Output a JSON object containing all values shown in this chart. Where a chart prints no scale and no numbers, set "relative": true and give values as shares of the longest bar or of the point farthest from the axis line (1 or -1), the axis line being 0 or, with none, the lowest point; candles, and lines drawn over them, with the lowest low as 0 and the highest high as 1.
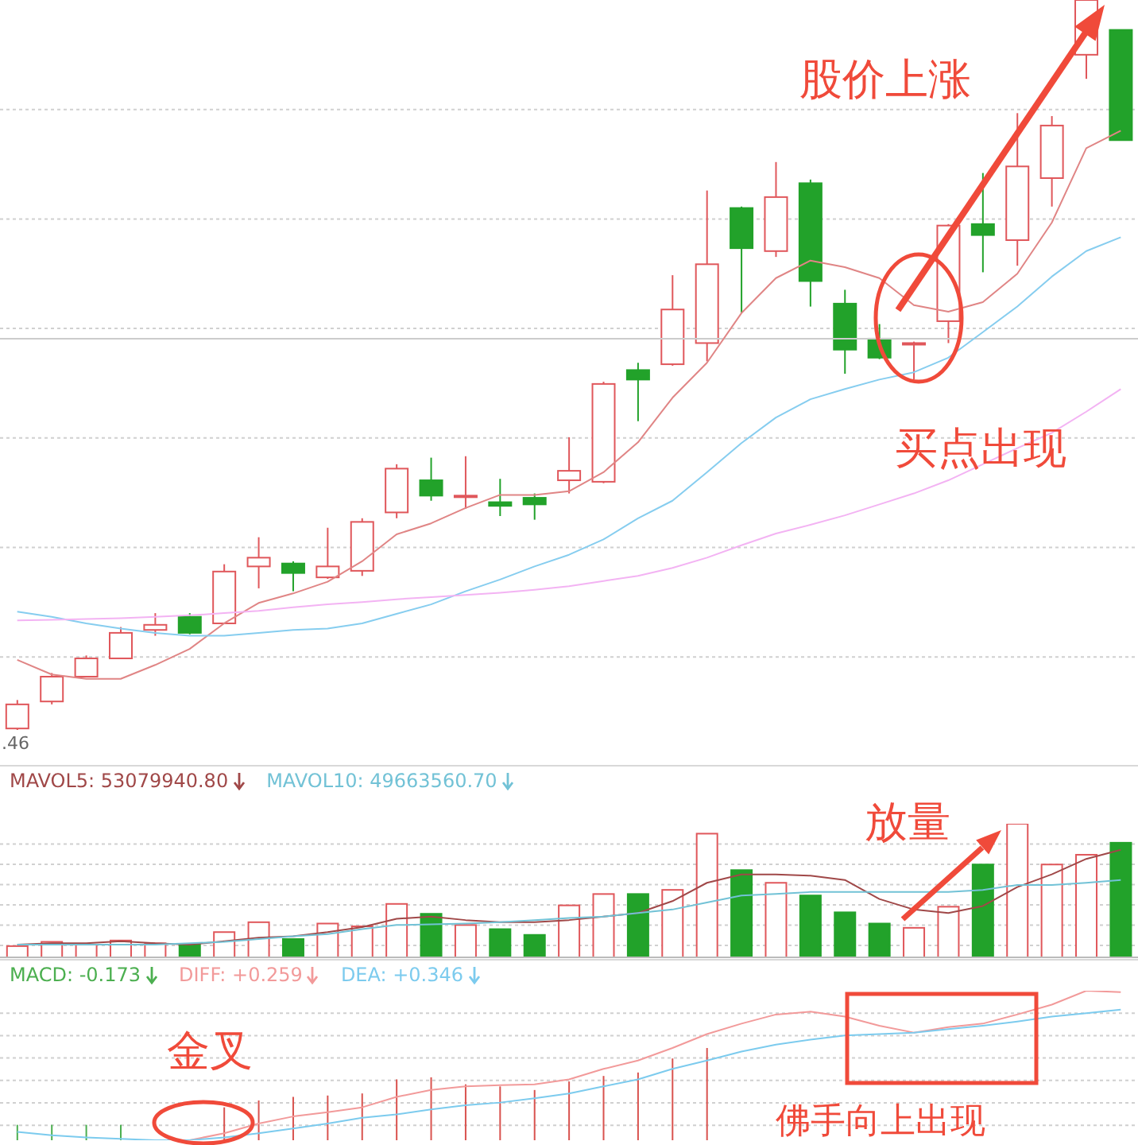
{
  "chart_data": [
    {
      "type": "candlestick",
      "relative": true,
      "grid": "y",
      "tick_labels": false,
      "categories": [
        null,
        null,
        null,
        null,
        null,
        null,
        null,
        null,
        null,
        null,
        null,
        null,
        null,
        null,
        null,
        null,
        null,
        null,
        null,
        null,
        null,
        null,
        null,
        null,
        null,
        null,
        null,
        null,
        null,
        null,
        null,
        null,
        null
      ],
      "ohlc": [
        [
          0.002,
          0.041,
          0,
          0.035
        ],
        [
          0.039,
          0.078,
          0.035,
          0.073
        ],
        [
          0.073,
          0.102,
          0.072,
          0.098
        ],
        [
          0.098,
          0.141,
          0.098,
          0.133
        ],
        [
          0.137,
          0.16,
          0.129,
          0.144
        ],
        [
          0.155,
          0.16,
          0.131,
          0.133
        ],
        [
          0.146,
          0.227,
          0.146,
          0.217
        ],
        [
          0.224,
          0.264,
          0.194,
          0.236
        ],
        [
          0.228,
          0.231,
          0.19,
          0.215
        ],
        [
          0.209,
          0.277,
          0.207,
          0.224
        ],
        [
          0.218,
          0.29,
          0.211,
          0.285
        ],
        [
          0.298,
          0.364,
          0.29,
          0.358
        ],
        [
          0.342,
          0.373,
          0.314,
          0.321
        ],
        [
          0.321,
          0.375,
          0.303,
          0.321
        ],
        [
          0.312,
          0.344,
          0.293,
          0.307
        ],
        [
          0.318,
          0.324,
          0.288,
          0.309
        ],
        [
          0.342,
          0.401,
          0.324,
          0.355
        ],
        [
          0.34,
          0.477,
          0.338,
          0.474
        ],
        [
          0.493,
          0.503,
          0.423,
          0.48
        ],
        [
          0.501,
          0.623,
          0.499,
          0.576
        ],
        [
          0.53,
          0.739,
          0.505,
          0.638
        ],
        [
          0.715,
          0.717,
          0.571,
          0.66
        ],
        [
          0.656,
          0.778,
          0.648,
          0.73
        ],
        [
          0.749,
          0.754,
          0.58,
          0.615
        ],
        [
          0.584,
          0.603,
          0.488,
          0.521
        ],
        [
          0.536,
          0.556,
          0.508,
          0.51
        ],
        [
          0.53,
          0.532,
          0.48,
          0.53
        ],
        [
          0.56,
          0.693,
          0.53,
          0.691
        ],
        [
          0.693,
          0.763,
          0.627,
          0.678
        ],
        [
          0.671,
          0.845,
          0.636,
          0.772
        ],
        [
          0.756,
          0.841,
          0.717,
          0.828
        ],
        [
          0.925,
          1,
          0.892,
          1
        ],
        [
          0.959,
          0.959,
          0.808,
          0.808
        ]
      ],
      "colors": [
        "#e0575b",
        "#e0575b",
        "#e0575b",
        "#e0575b",
        "#e0575b",
        "#22a22a",
        "#e0575b",
        "#e0575b",
        "#22a22a",
        "#e0575b",
        "#e0575b",
        "#e0575b",
        "#22a22a",
        "#e0575b",
        "#22a22a",
        "#22a22a",
        "#e0575b",
        "#e0575b",
        "#22a22a",
        "#e0575b",
        "#e0575b",
        "#22a22a",
        "#e0575b",
        "#22a22a",
        "#22a22a",
        "#22a22a",
        "#e0575b",
        "#e0575b",
        "#22a22a",
        "#e0575b",
        "#e0575b",
        "#e0575b",
        "#22a22a"
      ],
      "series": [
        {
          "type": "line",
          "color": "#e08585",
          "values": [
            0.096,
            0.076,
            0.07,
            0.07,
            0.089,
            0.111,
            0.146,
            0.174,
            0.187,
            0.203,
            0.231,
            0.268,
            0.283,
            0.304,
            0.322,
            0.322,
            0.327,
            0.353,
            0.394,
            0.455,
            0.503,
            0.571,
            0.619,
            0.643,
            0.634,
            0.619,
            0.582,
            0.573,
            0.586,
            0.625,
            0.695,
            0.797,
            0.821
          ]
        },
        {
          "type": "line",
          "color": "#86cdef",
          "values": [
            0.162,
            0.155,
            0.146,
            0.139,
            0.133,
            0.129,
            0.129,
            0.133,
            0.137,
            0.139,
            0.146,
            0.159,
            0.172,
            0.19,
            0.206,
            0.224,
            0.24,
            0.261,
            0.29,
            0.314,
            0.353,
            0.393,
            0.428,
            0.453,
            0.467,
            0.48,
            0.49,
            0.51,
            0.545,
            0.58,
            0.621,
            0.656,
            0.675
          ]
        },
        {
          "type": "line",
          "color": "#f3b3f3",
          "values": [
            0.15,
            0.151,
            0.152,
            0.153,
            0.155,
            0.157,
            0.16,
            0.163,
            0.168,
            0.172,
            0.175,
            0.179,
            0.182,
            0.185,
            0.188,
            0.192,
            0.197,
            0.204,
            0.211,
            0.222,
            0.236,
            0.253,
            0.269,
            0.281,
            0.294,
            0.309,
            0.324,
            0.342,
            0.364,
            0.386,
            0.407,
            0.436,
            0.467
          ]
        }
      ],
      "ref_lines": [
        {
          "axis": "y",
          "value": 0.536,
          "color": "#cccccc"
        }
      ],
      "annotations": [
        "股价上涨",
        "买点出现",
        ".46"
      ]
    },
    {
      "type": "bar",
      "relative": true,
      "grid": "y",
      "tick_labels": false,
      "legend": "top left",
      "categories": [
        null,
        null,
        null,
        null,
        null,
        null,
        null,
        null,
        null,
        null,
        null,
        null,
        null,
        null,
        null,
        null,
        null,
        null,
        null,
        null,
        null,
        null,
        null,
        null,
        null,
        null,
        null,
        null,
        null,
        null,
        null,
        null,
        null
      ],
      "series": [
        {
          "type": "bar",
          "colors": [
            "#e0575b",
            "#e0575b",
            "#e0575b",
            "#e0575b",
            "#e0575b",
            "#22a22a",
            "#e0575b",
            "#e0575b",
            "#22a22a",
            "#e0575b",
            "#e0575b",
            "#e0575b",
            "#22a22a",
            "#e0575b",
            "#22a22a",
            "#22a22a",
            "#e0575b",
            "#e0575b",
            "#22a22a",
            "#e0575b",
            "#e0575b",
            "#22a22a",
            "#e0575b",
            "#22a22a",
            "#22a22a",
            "#22a22a",
            "#e0575b",
            "#e0575b",
            "#22a22a",
            "#e0575b",
            "#e0575b",
            "#e0575b",
            "#22a22a"
          ],
          "values": [
            0.084,
            0.116,
            0.095,
            0.126,
            0.105,
            0.095,
            0.189,
            0.263,
            0.137,
            0.253,
            0.232,
            0.4,
            0.326,
            0.242,
            0.211,
            0.168,
            0.389,
            0.474,
            0.474,
            0.505,
            0.926,
            0.653,
            0.558,
            0.463,
            0.337,
            0.253,
            0.221,
            0.379,
            0.695,
            1,
            0.695,
            0.768,
            0.858
          ]
        },
        {
          "type": "line",
          "name": "MAVOL5: 53079940.80",
          "color": "#a04848",
          "values": [
            0.095,
            0.105,
            0.105,
            0.121,
            0.105,
            0.095,
            0.121,
            0.147,
            0.158,
            0.189,
            0.226,
            0.289,
            0.305,
            0.279,
            0.263,
            0.263,
            0.279,
            0.305,
            0.332,
            0.421,
            0.558,
            0.621,
            0.621,
            0.611,
            0.579,
            0.437,
            0.358,
            0.332,
            0.384,
            0.526,
            0.621,
            0.737,
            0.805
          ]
        },
        {
          "type": "line",
          "name": "MAVOL10: 49663560.70",
          "color": "#72c2d6",
          "values": [
            0.095,
            0.095,
            0.095,
            0.095,
            0.095,
            0.105,
            0.116,
            0.137,
            0.158,
            0.174,
            0.211,
            0.242,
            0.247,
            0.253,
            0.263,
            0.279,
            0.295,
            0.305,
            0.332,
            0.358,
            0.411,
            0.463,
            0.474,
            0.489,
            0.489,
            0.489,
            0.489,
            0.489,
            0.505,
            0.542,
            0.542,
            0.558,
            0.579
          ]
        }
      ],
      "annotations": [
        "放量"
      ]
    },
    {
      "type": "line",
      "relative": true,
      "grid": "y",
      "tick_labels": false,
      "legend": "top left",
      "categories": [
        null,
        null,
        null,
        null,
        null,
        null,
        null,
        null,
        null,
        null,
        null,
        null,
        null,
        null,
        null,
        null,
        null,
        null,
        null,
        null,
        null,
        null,
        null,
        null,
        null,
        null,
        null,
        null,
        null,
        null,
        null,
        null,
        null
      ],
      "series": [
        {
          "type": "bar",
          "name": "MACD: -0.173",
          "colors": [
            "#4caf50",
            "#4caf50",
            "#4caf50",
            "#4caf50",
            "#d9534f",
            "#d9534f",
            "#d9534f",
            "#d9534f",
            "#d9534f",
            "#d9534f",
            "#d9534f",
            "#d9534f",
            "#d9534f",
            "#d9534f",
            "#d9534f",
            "#d9534f",
            "#d9534f",
            "#d9534f",
            "#d9534f",
            "#d9534f",
            "#d9534f",
            "#d9534f",
            "#d9534f",
            "#d9534f",
            "#d9534f",
            "#d9534f",
            "#d9534f",
            "#d9534f",
            "#d9534f",
            "#d9534f",
            "#d9534f",
            "#d9534f",
            "#d9534f"
          ],
          "values": [
            0.103,
            0.103,
            0.103,
            0.103,
            null,
            null,
            0.22,
            0.266,
            0.29,
            0.299,
            0.313,
            0.407,
            0.421,
            0.374,
            0.36,
            0.336,
            0.393,
            0.43,
            0.453,
            0.547,
            0.617,
            null,
            null,
            null,
            null,
            null,
            null,
            null,
            null,
            null,
            null,
            null,
            null
          ]
        },
        {
          "type": "line",
          "name": "DIFF: +0.259",
          "color": "#f29a9a",
          "values": [
            null,
            null,
            null,
            null,
            null,
            0,
            0.047,
            0.112,
            0.159,
            0.187,
            0.22,
            0.29,
            0.336,
            0.36,
            0.369,
            0.374,
            0.407,
            0.477,
            0.533,
            0.617,
            0.71,
            0.78,
            0.841,
            0.86,
            0.827,
            0.766,
            0.72,
            0.757,
            0.78,
            0.841,
            0.907,
            1,
            0.991
          ]
        },
        {
          "type": "line",
          "name": "DEA: +0.346",
          "color": "#7ccbee",
          "values": [
            0.056,
            0.033,
            0.019,
            0.009,
            0,
            0,
            0.019,
            0.047,
            0.079,
            0.112,
            0.15,
            0.173,
            0.206,
            0.234,
            0.252,
            0.28,
            0.313,
            0.36,
            0.407,
            0.477,
            0.533,
            0.593,
            0.64,
            0.673,
            0.701,
            0.71,
            0.72,
            0.743,
            0.766,
            0.794,
            0.827,
            0.85,
            0.874
          ]
        }
      ],
      "annotations": [
        "金叉",
        "佛手向上出现"
      ]
    }
  ]
}
